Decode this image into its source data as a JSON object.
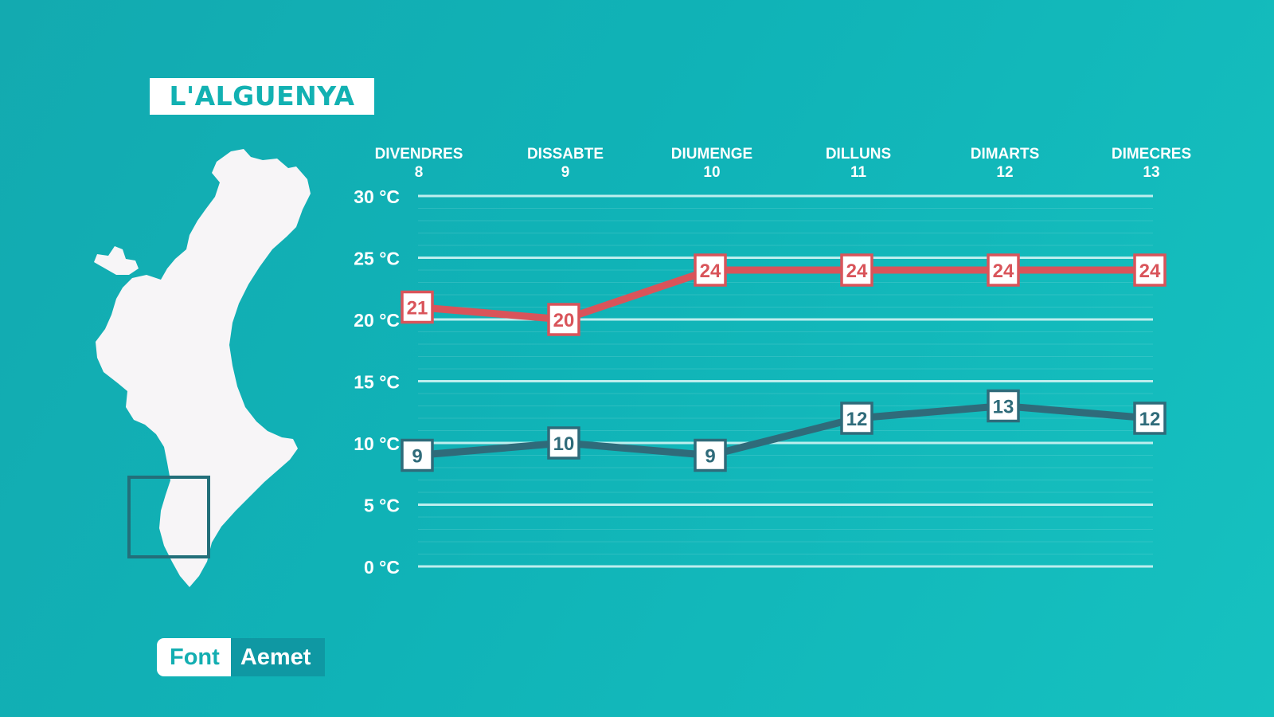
{
  "title": "L'ALGUENYA",
  "source": {
    "label": "Font",
    "value": "Aemet"
  },
  "colors": {
    "background": "#12b0b4",
    "max": "#d9545a",
    "min": "#2f6b7a",
    "grid": "#bdeeee"
  },
  "icons": {
    "map": "valencia-region-map",
    "location": "location-square"
  },
  "chart_data": {
    "type": "line",
    "categories": [
      {
        "day": "DIVENDRES",
        "num": "8"
      },
      {
        "day": "DISSABTE",
        "num": "9"
      },
      {
        "day": "DIUMENGE",
        "num": "10"
      },
      {
        "day": "DILLUNS",
        "num": "11"
      },
      {
        "day": "DIMARTS",
        "num": "12"
      },
      {
        "day": "DIMECRES",
        "num": "13"
      }
    ],
    "y_ticks": [
      "0 °C",
      "5 °C",
      "10 °C",
      "15 °C",
      "20 °C",
      "25 °C",
      "30 °C"
    ],
    "ylim": [
      0,
      30
    ],
    "grid": true,
    "series": [
      {
        "key": "max",
        "values": [
          21,
          20,
          24,
          24,
          24,
          24
        ]
      },
      {
        "key": "min",
        "values": [
          9,
          10,
          9,
          12,
          13,
          12
        ]
      }
    ]
  }
}
